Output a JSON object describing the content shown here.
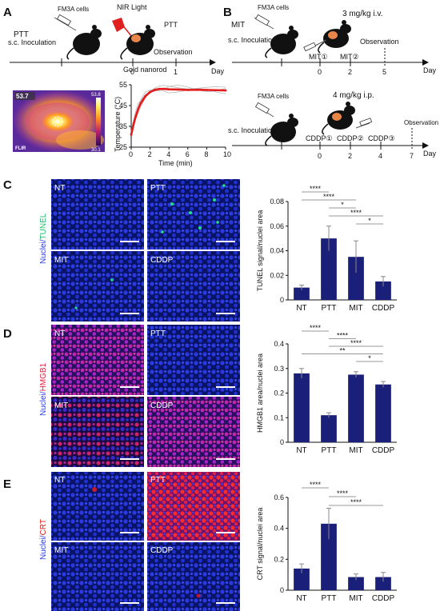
{
  "panels": {
    "A": {
      "letter": "A",
      "label": "PTT",
      "cells": "FM3A cells",
      "inoculation": "s.c. Inoculation",
      "light": "NIR Light",
      "nanorod": "Gold nanorod",
      "treatment": "PTT",
      "observation": "Observation",
      "day_label": "Day",
      "days": [
        "0",
        "1"
      ],
      "thermal": {
        "temp_max_display": "53.7",
        "scale_top": "53.8",
        "scale_bottom": "30.1",
        "brand": "FLIR"
      }
    },
    "B": {
      "letter": "B",
      "label": "MIT",
      "cells": "FM3A cells",
      "inoculation": "s.c. Inoculation",
      "dose": "3 mg/kg i.v.",
      "injections": [
        "MIT①",
        "MIT②"
      ],
      "observation": "Observation",
      "day_label": "Day",
      "days": [
        "0",
        "2",
        "5"
      ],
      "second": {
        "cells": "FM3A cells",
        "inoculation": "s.c. Inoculation",
        "dose": "4 mg/kg i.p.",
        "injections": [
          "CDDP①",
          "CDDP②",
          "CDDP③"
        ],
        "observation": "Observation",
        "day_label": "Day",
        "days": [
          "0",
          "2",
          "4",
          "7"
        ]
      }
    },
    "C": {
      "letter": "C",
      "side_label_a": "Nuclei/",
      "side_label_b": "TUNEL",
      "tiles": [
        "NT",
        "PTT",
        "MIT",
        "CDDP"
      ]
    },
    "D": {
      "letter": "D",
      "side_label_a": "Nuclei/",
      "side_label_b": "HMGB1",
      "tiles": [
        "NT",
        "PTT",
        "MIT",
        "CDDP"
      ]
    },
    "E": {
      "letter": "E",
      "side_label_a": "Nuclei/",
      "side_label_b": "CRT",
      "tiles": [
        "NT",
        "PTT",
        "MIT",
        "CDDP"
      ]
    }
  },
  "colors": {
    "bar": "#1a1f7a",
    "curve": "#e31b1b",
    "nuclei": "#1f2fd0",
    "tunel": "#22e08a",
    "hmgb1": "#e0207a",
    "crt": "#e01818"
  },
  "chart_data": [
    {
      "type": "line",
      "id": "temperature",
      "xlabel": "Time (min)",
      "ylabel": "Temperature (°C)",
      "xlim": [
        0,
        10
      ],
      "ylim": [
        25,
        55
      ],
      "xticks": [
        "0",
        "2",
        "4",
        "6",
        "8",
        "10"
      ],
      "yticks": [
        "25",
        "35",
        "45",
        "55"
      ],
      "x": [
        0,
        0.25,
        0.5,
        0.75,
        1,
        1.5,
        2,
        2.5,
        3,
        3.5,
        4,
        5,
        6,
        7,
        8,
        9,
        10
      ],
      "series": [
        {
          "values": [
            31,
            36,
            40,
            43.5,
            46,
            49.5,
            51.5,
            52.5,
            53,
            53,
            52.8,
            52.7,
            52.5,
            52.6,
            52.5,
            52.4,
            52.3
          ]
        }
      ]
    },
    {
      "type": "bar",
      "id": "tunel",
      "ylabel": "TUNEL signal/nuclei area",
      "categories": [
        "NT",
        "PTT",
        "MIT",
        "CDDP"
      ],
      "values": [
        0.01,
        0.05,
        0.035,
        0.015
      ],
      "errors": [
        0.002,
        0.01,
        0.013,
        0.004
      ],
      "ylim": [
        0,
        0.08
      ],
      "yticks": [
        "0",
        "0.02",
        "0.04",
        "0.06",
        "0.08"
      ],
      "significance": [
        {
          "from": 0,
          "to": 1,
          "label": "****"
        },
        {
          "from": 0,
          "to": 2,
          "label": "****"
        },
        {
          "from": 1,
          "to": 2,
          "label": "*"
        },
        {
          "from": 1,
          "to": 3,
          "label": "****"
        },
        {
          "from": 2,
          "to": 3,
          "label": "*"
        }
      ]
    },
    {
      "type": "bar",
      "id": "hmgb1",
      "ylabel": "HMGB1 area/nuclei area",
      "categories": [
        "NT",
        "PTT",
        "MIT",
        "CDDP"
      ],
      "values": [
        0.28,
        0.11,
        0.275,
        0.235
      ],
      "errors": [
        0.02,
        0.01,
        0.012,
        0.012
      ],
      "ylim": [
        0,
        0.4
      ],
      "yticks": [
        "0",
        "0.1",
        "0.2",
        "0.3",
        "0.4"
      ],
      "significance": [
        {
          "from": 0,
          "to": 1,
          "label": "****"
        },
        {
          "from": 1,
          "to": 2,
          "label": "****"
        },
        {
          "from": 1,
          "to": 3,
          "label": "****"
        },
        {
          "from": 0,
          "to": 3,
          "label": "**"
        },
        {
          "from": 2,
          "to": 3,
          "label": "*"
        }
      ]
    },
    {
      "type": "bar",
      "id": "crt",
      "ylabel": "CRT signal/nuclei area",
      "categories": [
        "NT",
        "PTT",
        "MIT",
        "CDDP"
      ],
      "values": [
        0.14,
        0.43,
        0.085,
        0.085
      ],
      "errors": [
        0.03,
        0.1,
        0.02,
        0.03
      ],
      "ylim": [
        0,
        0.6
      ],
      "yticks": [
        "0",
        "0.2",
        "0.4",
        "0.6"
      ],
      "significance": [
        {
          "from": 0,
          "to": 1,
          "label": "****"
        },
        {
          "from": 1,
          "to": 2,
          "label": "****"
        },
        {
          "from": 1,
          "to": 3,
          "label": "****"
        }
      ]
    }
  ]
}
